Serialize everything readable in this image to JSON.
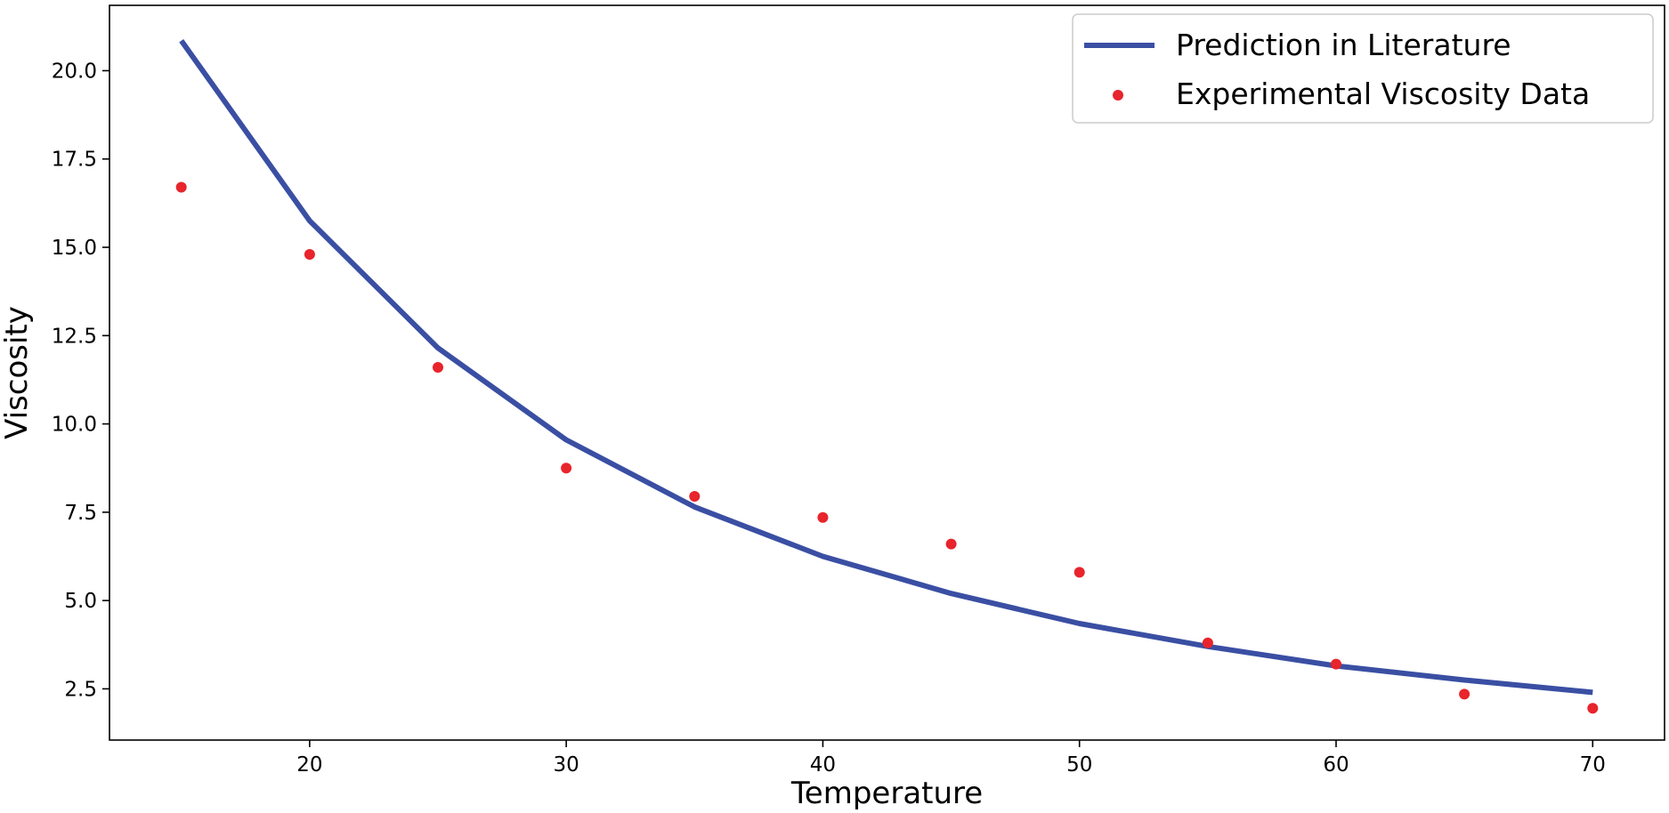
{
  "chart_data": {
    "type": "line",
    "title": "",
    "xlabel": "Temperature",
    "ylabel": "Viscosity",
    "xlim": [
      12.2,
      72.8
    ],
    "ylim": [
      1.05,
      21.85
    ],
    "grid": false,
    "legend_position": "top-right",
    "xticks": [
      {
        "value": 20,
        "label": "20"
      },
      {
        "value": 30,
        "label": "30"
      },
      {
        "value": 40,
        "label": "40"
      },
      {
        "value": 50,
        "label": "50"
      },
      {
        "value": 60,
        "label": "60"
      },
      {
        "value": 70,
        "label": "70"
      }
    ],
    "yticks": [
      {
        "value": 2.5,
        "label": "2.5"
      },
      {
        "value": 5.0,
        "label": "5.0"
      },
      {
        "value": 7.5,
        "label": "7.5"
      },
      {
        "value": 10.0,
        "label": "10.0"
      },
      {
        "value": 12.5,
        "label": "12.5"
      },
      {
        "value": 15.0,
        "label": "15.0"
      },
      {
        "value": 17.5,
        "label": "17.5"
      },
      {
        "value": 20.0,
        "label": "20.0"
      }
    ],
    "series": [
      {
        "name": "Prediction in Literature",
        "kind": "line",
        "color": "#3a4fa3",
        "x": [
          15,
          20,
          25,
          30,
          35,
          40,
          45,
          50,
          55,
          60,
          65,
          70
        ],
        "y": [
          20.85,
          15.75,
          12.15,
          9.55,
          7.65,
          6.25,
          5.2,
          4.35,
          3.7,
          3.15,
          2.75,
          2.4
        ]
      },
      {
        "name": "Experimental Viscosity Data",
        "kind": "scatter",
        "color": "#e8242c",
        "x": [
          15,
          20,
          25,
          30,
          35,
          40,
          45,
          50,
          55,
          60,
          65,
          70
        ],
        "y": [
          16.7,
          14.8,
          11.6,
          8.75,
          7.95,
          7.35,
          6.6,
          5.8,
          3.8,
          3.2,
          2.35,
          1.95
        ]
      }
    ]
  }
}
